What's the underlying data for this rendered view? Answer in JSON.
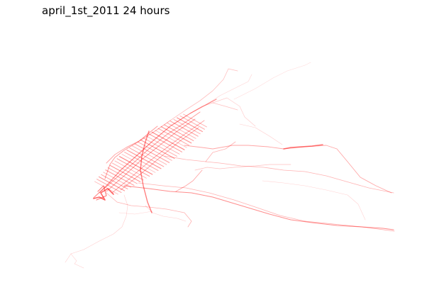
{
  "figure": {
    "title": "april_1st_2011 24 hours",
    "trace_color": "#ff0000",
    "background_color": "#ffffff"
  }
}
